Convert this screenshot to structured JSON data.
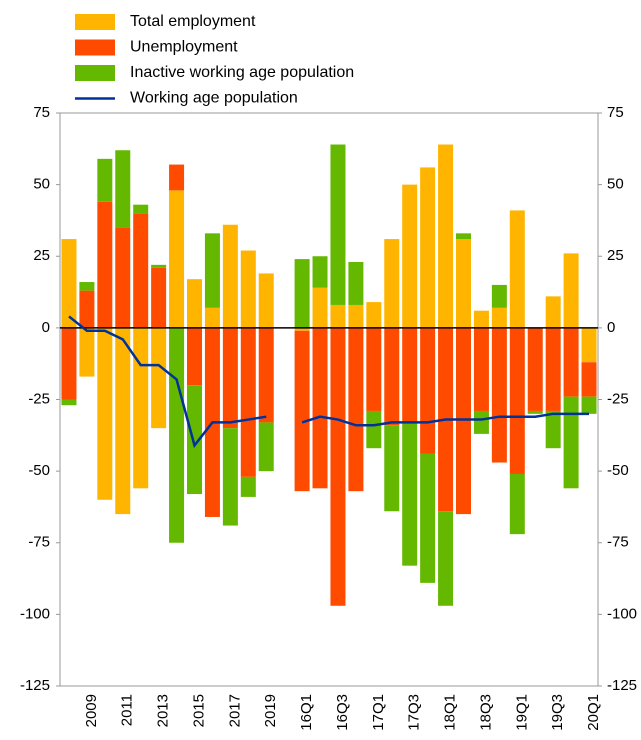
{
  "chart_data": {
    "type": "bar",
    "categories": [
      null,
      "2009",
      null,
      "2011",
      null,
      "2013",
      null,
      "2015",
      null,
      "2017",
      null,
      "2019",
      null,
      "16Q1",
      null,
      "16Q3",
      null,
      "17Q1",
      null,
      "17Q3",
      null,
      "18Q1",
      null,
      "18Q3",
      null,
      "19Q1",
      null,
      "19Q3",
      null,
      "20Q1"
    ],
    "series": [
      {
        "name": "Total employment",
        "color": "#ffb400",
        "values": [
          31,
          -17,
          -60,
          -65,
          -56,
          -35,
          48,
          17,
          7,
          36,
          27,
          19,
          null,
          -1,
          14,
          8,
          8,
          9,
          31,
          50,
          56,
          64,
          31,
          6,
          7,
          41,
          0,
          11,
          26,
          -12
        ]
      },
      {
        "name": "Unemployment",
        "color": "#ff4b00",
        "values": [
          -25,
          13,
          44,
          35,
          40,
          21,
          9,
          -20,
          -66,
          -35,
          -52,
          -33,
          null,
          -56,
          -56,
          -97,
          -57,
          -29,
          -34,
          -33,
          -44,
          -64,
          -65,
          -29,
          -47,
          -51,
          -29,
          -29,
          -24,
          -12
        ]
      },
      {
        "name": "Inactive working age population",
        "color": "#65b800",
        "values": [
          -2,
          3,
          15,
          27,
          3,
          1,
          -75,
          -38,
          26,
          -34,
          -7,
          -17,
          null,
          24,
          11,
          56,
          15,
          -13,
          -30,
          -50,
          -45,
          -33,
          2,
          -8,
          8,
          -21,
          -1,
          -13,
          -32,
          -6
        ]
      },
      {
        "name": "Working age population",
        "color": "#003299",
        "type": "line",
        "values": [
          4,
          -1,
          -1,
          -4,
          -13,
          -13,
          -18,
          -41,
          -33,
          -33,
          -32,
          -31,
          null,
          -33,
          -31,
          -32,
          -34,
          -34,
          -33,
          -33,
          -33,
          -32,
          -32,
          -32,
          -31,
          -31,
          -31,
          -30,
          -30,
          -30
        ]
      }
    ],
    "ylim": [
      -125,
      75
    ],
    "yticks": [
      -125,
      -100,
      -75,
      -50,
      -25,
      0,
      25,
      50,
      75
    ],
    "y2lim": [
      -125,
      75
    ],
    "y2ticks": [
      -125,
      -100,
      -75,
      -50,
      -25,
      0,
      25,
      50,
      75
    ]
  }
}
